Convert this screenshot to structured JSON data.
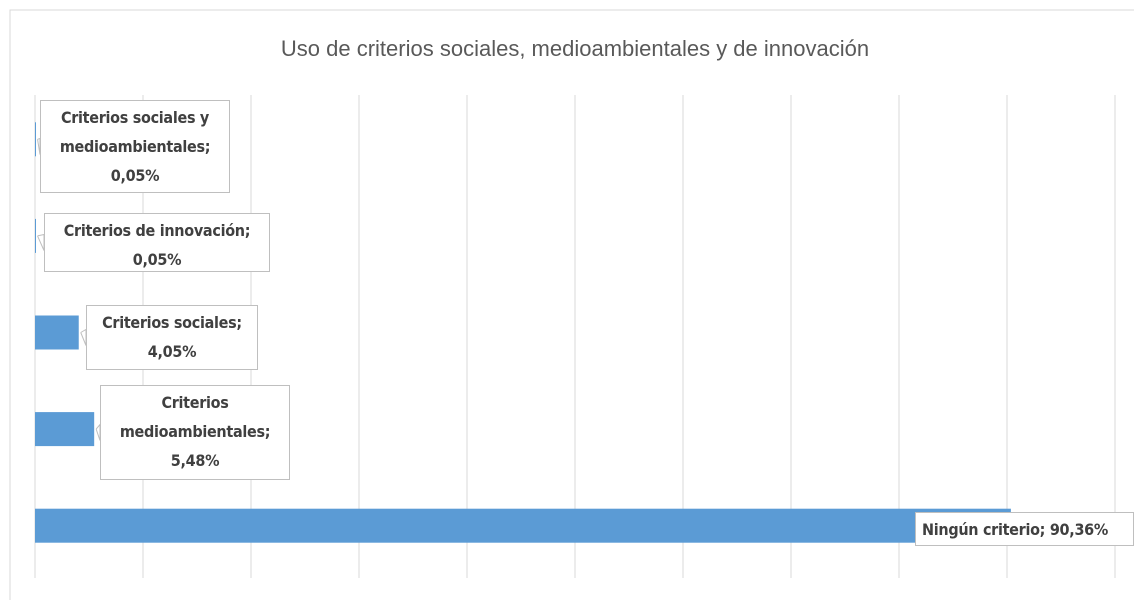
{
  "chart_data": {
    "type": "bar",
    "orientation": "horizontal",
    "title": "Uso de criterios sociales, medioambientales  y de innovación",
    "values": [
      0.05,
      0.05,
      4.05,
      5.48,
      90.36
    ],
    "value_labels": [
      "Criterios sociales y medioambientales; 0,05%",
      "Criterios de innovación; 0,05%",
      "Criterios sociales; 4,05%",
      "Criterios medioambientales; 5,48%",
      "Ningún criterio; 90,36%"
    ],
    "color": "#5b9bd5",
    "xlim": [
      0,
      100
    ],
    "xticks": [
      0,
      10,
      20,
      30,
      40,
      50,
      60,
      70,
      80,
      90,
      100
    ],
    "grid": true
  }
}
